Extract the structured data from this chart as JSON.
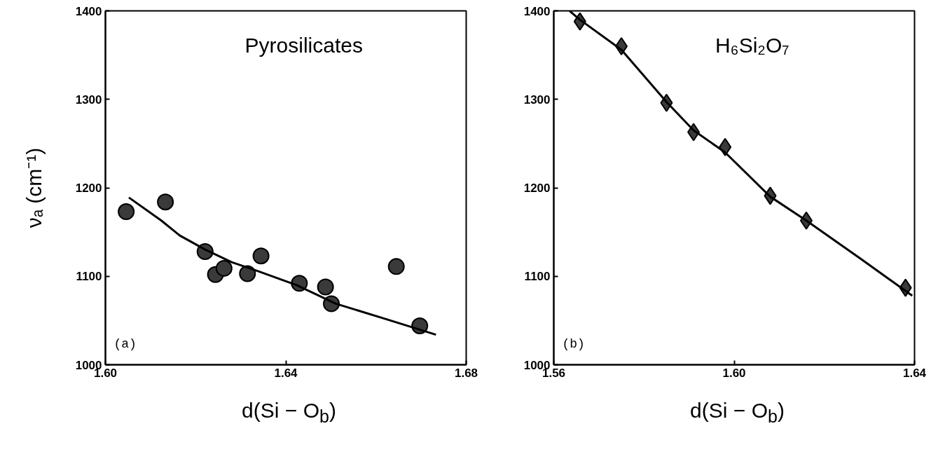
{
  "chart_data": [
    {
      "type": "scatter",
      "title": "Pyrosilicates",
      "xlabel": "d(Si − O$_{b}$)",
      "ylabel": "νₐ (cm⁻¹)",
      "grid": false,
      "xlim": [
        1.6,
        1.68
      ],
      "xticks": [
        {
          "value": 1.6,
          "label": "1.60"
        },
        {
          "value": 1.64,
          "label": "1.64"
        },
        {
          "value": 1.68,
          "label": "1.68"
        }
      ],
      "ylim": [
        1000,
        1400
      ],
      "yticks": [
        1000,
        1100,
        1200,
        1300,
        1400
      ],
      "annotations": [
        "(a)"
      ],
      "series": [
        {
          "marker": "circle",
          "color": "#3a3a3a",
          "x": [
            1.6046,
            1.6133,
            1.6221,
            1.6244,
            1.6263,
            1.6315,
            1.6345,
            1.643,
            1.6488,
            1.6501,
            1.6645,
            1.6697
          ],
          "values": [
            1173,
            1184,
            1128,
            1102,
            1109,
            1103,
            1123,
            1092,
            1088,
            1069,
            1111,
            1044
          ]
        },
        {
          "type": "line",
          "color": "#000000",
          "x": [
            1.6052,
            1.6124,
            1.6165,
            1.6222,
            1.628,
            1.6337,
            1.6424,
            1.6511,
            1.6626,
            1.6733
          ],
          "values": [
            1189,
            1163,
            1146,
            1130,
            1116,
            1106,
            1090,
            1069,
            1051,
            1034
          ]
        }
      ]
    },
    {
      "type": "scatter",
      "title": "H₆Si₂O₇",
      "xlabel": "d(Si − O$_{b}$)",
      "grid": false,
      "xlim": [
        1.56,
        1.64
      ],
      "xticks": [
        {
          "value": 1.56,
          "label": "1.56"
        },
        {
          "value": 1.6,
          "label": "1.60"
        },
        {
          "value": 1.64,
          "label": "1.64"
        }
      ],
      "ylim": [
        1000,
        1400
      ],
      "yticks": [
        1000,
        1100,
        1200,
        1300,
        1400
      ],
      "annotations": [
        "(b)"
      ],
      "series": [
        {
          "marker": "diamond",
          "color": "#3a3a3a",
          "x": [
            1.5658,
            1.575,
            1.585,
            1.591,
            1.598,
            1.608,
            1.616,
            1.638
          ],
          "values": [
            1388,
            1360,
            1296,
            1263,
            1246,
            1191,
            1163,
            1087
          ]
        },
        {
          "type": "line",
          "color": "#000000",
          "x": [
            1.5635,
            1.5658,
            1.575,
            1.585,
            1.591,
            1.598,
            1.608,
            1.616,
            1.628,
            1.6395
          ],
          "values": [
            1400,
            1390,
            1356,
            1297,
            1265,
            1240,
            1190,
            1163,
            1120,
            1078
          ]
        }
      ]
    }
  ]
}
